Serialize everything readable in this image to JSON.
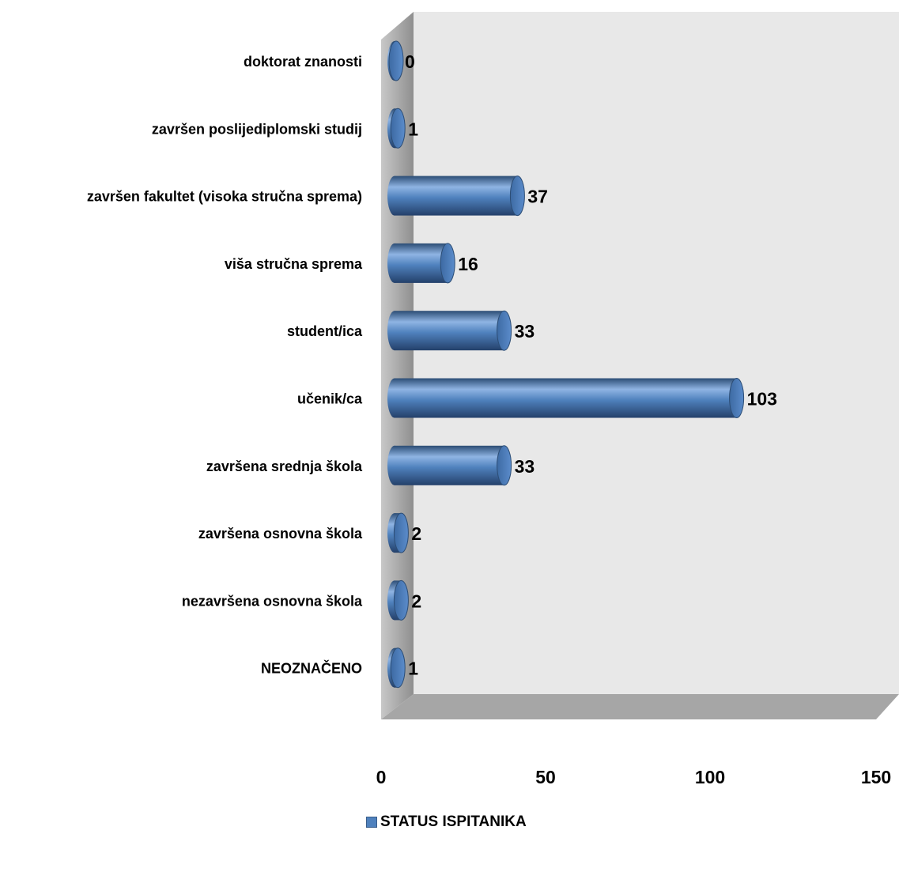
{
  "chart_data": {
    "type": "bar",
    "orientation": "horizontal",
    "style": "3d-cylinder",
    "categories": [
      "doktorat znanosti",
      "završen poslijediplomski studij",
      "završen fakultet (visoka stručna sprema)",
      "viša stručna sprema",
      "student/ica",
      "učenik/ca",
      "završena srednja škola",
      "završena osnovna škola",
      "nezavršena osnovna škola",
      "NEOZNAČENO"
    ],
    "series": [
      {
        "name": "STATUS ISPITANIKA",
        "values": [
          0,
          1,
          37,
          16,
          33,
          103,
          33,
          2,
          2,
          1
        ]
      }
    ],
    "data_labels": [
      "0",
      "1",
      "37",
      "16",
      "33",
      "103",
      "33",
      "2",
      "2",
      "1"
    ],
    "xlim": [
      0,
      150
    ],
    "x_ticks": [
      "0",
      "50",
      "100",
      "150"
    ],
    "grid": false,
    "legend_position": "bottom",
    "colors": {
      "bar": "#4f81bd",
      "bar_dark": "#2c4d75",
      "bar_light": "#8fb4e3",
      "wall": "#e8e8e8",
      "wall_side": "#9f9f9f",
      "floor": "#a6a6a6"
    }
  }
}
